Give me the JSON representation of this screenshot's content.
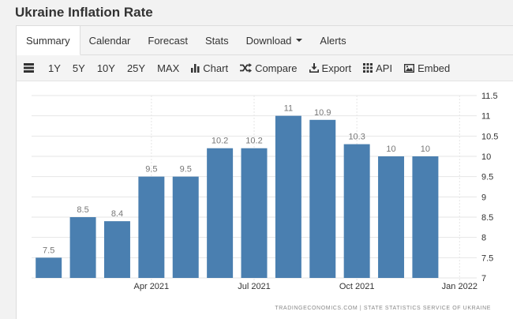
{
  "page": {
    "title": "Ukraine Inflation Rate",
    "source": "TRADINGECONOMICS.COM | STATE STATISTICS SERVICE OF UKRAINE"
  },
  "tabs": [
    {
      "label": "Summary",
      "active": true
    },
    {
      "label": "Calendar"
    },
    {
      "label": "Forecast"
    },
    {
      "label": "Stats"
    },
    {
      "label": "Download"
    },
    {
      "label": "Alerts"
    }
  ],
  "toolbar": {
    "ranges": [
      "1Y",
      "5Y",
      "10Y",
      "25Y",
      "MAX"
    ],
    "chart": "Chart",
    "compare": "Compare",
    "export": "Export",
    "api": "API",
    "embed": "Embed"
  },
  "colors": {
    "bar": "#4a7fb0",
    "grid": "#e6e6e6",
    "axis_text": "#333333",
    "label_text": "#777777"
  },
  "chart_data": {
    "type": "bar",
    "title": "",
    "xlabel": "",
    "ylabel": "",
    "ylim": [
      7,
      11.5
    ],
    "y_ticks": [
      7,
      7.5,
      8,
      8.5,
      9,
      9.5,
      10,
      10.5,
      11,
      11.5
    ],
    "x_tick_labels": [
      "Apr 2021",
      "Jul 2021",
      "Oct 2021",
      "Jan 2022"
    ],
    "categories": [
      "Jan 2021",
      "Feb 2021",
      "Mar 2021",
      "Apr 2021",
      "May 2021",
      "Jun 2021",
      "Jul 2021",
      "Aug 2021",
      "Sep 2021",
      "Oct 2021",
      "Nov 2021",
      "Dec 2021",
      "Jan 2022"
    ],
    "values": [
      7.5,
      8.5,
      8.4,
      9.5,
      9.5,
      10.2,
      10.2,
      11,
      10.9,
      10.3,
      10,
      10,
      null
    ],
    "value_labels": [
      "7.5",
      "8.5",
      "8.4",
      "9.5",
      "9.5",
      "10.2",
      "10.2",
      "11",
      "10.9",
      "10.3",
      "10",
      "10",
      ""
    ],
    "grid": true
  }
}
